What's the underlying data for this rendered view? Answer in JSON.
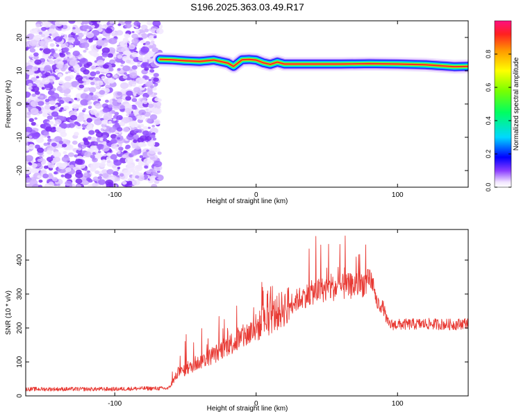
{
  "title": "S196.2025.363.03.49.R17",
  "chart_data": [
    {
      "type": "heatmap",
      "xlabel": "Height of straight line (km)",
      "ylabel": "Frequency (Hz)",
      "xlim": [
        -163,
        150
      ],
      "ylim": [
        -25,
        25
      ],
      "xticks": [
        -100,
        0,
        100
      ],
      "yticks": [
        -20,
        -10,
        0,
        10,
        20
      ],
      "colorbar": {
        "label": "Normalized spectral amplitude",
        "range": [
          0,
          1
        ],
        "ticks": [
          0.0,
          0.2,
          0.4,
          0.6,
          0.8
        ]
      },
      "noise_region": {
        "x": [
          -163,
          -68
        ],
        "y": [
          -25,
          25
        ]
      },
      "ridge": {
        "x": [
          -68,
          -60,
          -50,
          -40,
          -30,
          -20,
          -16,
          -10,
          -5,
          0,
          5,
          10,
          15,
          20,
          40,
          60,
          80,
          100,
          120,
          140,
          150
        ],
        "frequency_hz": [
          13.4,
          13.3,
          13.0,
          12.8,
          13.2,
          12.3,
          11.3,
          13.3,
          13.4,
          13.2,
          12.4,
          11.9,
          12.6,
          12.0,
          12.0,
          12.0,
          12.1,
          12.0,
          11.8,
          11.2,
          11.3
        ]
      }
    },
    {
      "type": "line",
      "xlabel": "Height of straight line (km)",
      "ylabel": "SNR (10 * v/v)",
      "xlim": [
        -163,
        150
      ],
      "ylim": [
        0,
        490
      ],
      "xticks": [
        -100,
        0,
        100
      ],
      "yticks": [
        0,
        100,
        200,
        300,
        400
      ],
      "color": "#e83a34",
      "series": [
        {
          "x": [
            -163,
            -140,
            -120,
            -100,
            -80,
            -62,
            -60,
            -55,
            -50,
            -40,
            -30,
            -20,
            -10,
            0,
            10,
            20,
            30,
            40,
            50,
            60,
            70,
            80,
            83,
            85,
            90,
            93,
            95,
            100,
            120,
            140,
            150
          ],
          "y": [
            20,
            20,
            20,
            20,
            22,
            22,
            35,
            70,
            75,
            100,
            120,
            150,
            170,
            200,
            230,
            260,
            285,
            305,
            315,
            320,
            325,
            335,
            330,
            275,
            260,
            215,
            210,
            210,
            212,
            210,
            215
          ]
        }
      ]
    }
  ]
}
